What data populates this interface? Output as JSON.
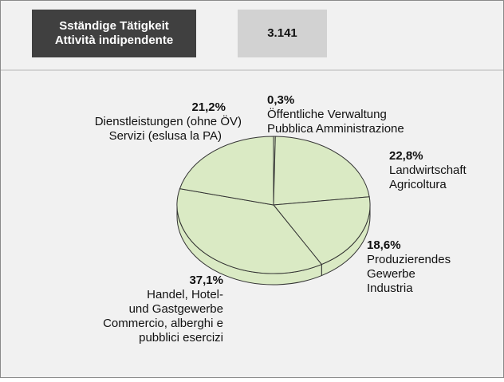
{
  "header": {
    "title_lines": [
      "Sständige Tätigkeit",
      "Attività indipendente"
    ],
    "value": "3.141"
  },
  "chart_data": {
    "type": "pie",
    "categories": [
      [
        "Öffentliche Verwaltung",
        "Pubblica Amministrazione"
      ],
      [
        "Landwirtschaft",
        "Agricoltura"
      ],
      [
        "Produzierendes",
        "Gewerbe",
        "Industria"
      ],
      [
        "Handel, Hotel-",
        "und Gastgewerbe",
        "Commercio, alberghi e",
        "pubblici esercizi"
      ],
      [
        "Dienstleistungen (ohne ÖV)",
        "Servizi (eslusa la PA)"
      ]
    ],
    "values": [
      0.3,
      22.8,
      18.6,
      37.1,
      21.2
    ],
    "value_labels": [
      "0,3%",
      "22,8%",
      "18,6%",
      "37,1%",
      "21,2%"
    ],
    "color": "#daeac4"
  }
}
